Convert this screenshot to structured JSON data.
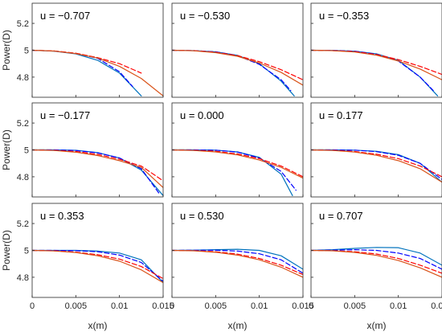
{
  "chart_data": [
    {
      "type": "line",
      "panel_label": "u = −0.707",
      "series": [
        {
          "color": "#0072BD",
          "dash": "solid",
          "x": [
            0,
            0.0025,
            0.005,
            0.0075,
            0.01,
            0.0125
          ],
          "y": [
            5.0,
            4.993,
            4.973,
            4.925,
            4.83,
            4.66
          ]
        },
        {
          "color": "#0000FF",
          "dash": "dashed",
          "x": [
            0,
            0.0025,
            0.005,
            0.0075,
            0.01,
            0.0115
          ],
          "y": [
            5.0,
            4.994,
            4.976,
            4.94,
            4.84,
            4.73
          ]
        },
        {
          "color": "#FF0000",
          "dash": "dashed",
          "x": [
            0,
            0.0025,
            0.005,
            0.0075,
            0.01,
            0.0125
          ],
          "y": [
            5.0,
            4.995,
            4.978,
            4.945,
            4.9,
            4.83
          ]
        },
        {
          "color": "#D95319",
          "dash": "solid",
          "x": [
            0,
            0.0025,
            0.005,
            0.0075,
            0.01,
            0.0125,
            0.015
          ],
          "y": [
            5.0,
            4.994,
            4.975,
            4.942,
            4.88,
            4.79,
            4.66
          ]
        }
      ]
    },
    {
      "type": "line",
      "panel_label": "u = −0.530",
      "series": [
        {
          "color": "#0072BD",
          "dash": "solid",
          "x": [
            0,
            0.0025,
            0.005,
            0.0075,
            0.01,
            0.0125,
            0.014
          ],
          "y": [
            5.0,
            4.997,
            4.988,
            4.962,
            4.9,
            4.77,
            4.66
          ]
        },
        {
          "color": "#0000FF",
          "dash": "dashed",
          "x": [
            0,
            0.0025,
            0.005,
            0.0075,
            0.01,
            0.0125,
            0.0136
          ],
          "y": [
            5.0,
            4.997,
            4.988,
            4.96,
            4.895,
            4.78,
            4.7
          ]
        },
        {
          "color": "#FF0000",
          "dash": "dashed",
          "x": [
            0,
            0.0025,
            0.005,
            0.0075,
            0.01,
            0.0125,
            0.015
          ],
          "y": [
            5.0,
            4.997,
            4.985,
            4.96,
            4.915,
            4.855,
            4.78
          ]
        },
        {
          "color": "#D95319",
          "dash": "solid",
          "x": [
            0,
            0.0025,
            0.005,
            0.0075,
            0.01,
            0.0125,
            0.015
          ],
          "y": [
            5.0,
            4.996,
            4.982,
            4.955,
            4.905,
            4.835,
            4.74
          ]
        }
      ]
    },
    {
      "type": "line",
      "panel_label": "u = −0.353",
      "series": [
        {
          "color": "#0072BD",
          "dash": "solid",
          "x": [
            0,
            0.0025,
            0.005,
            0.0075,
            0.01,
            0.0125,
            0.0145
          ],
          "y": [
            5.0,
            4.999,
            4.993,
            4.973,
            4.925,
            4.8,
            4.66
          ]
        },
        {
          "color": "#0000FF",
          "dash": "dashed",
          "x": [
            0,
            0.0025,
            0.005,
            0.0075,
            0.01,
            0.0125,
            0.014
          ],
          "y": [
            5.0,
            4.999,
            4.993,
            4.97,
            4.92,
            4.8,
            4.7
          ]
        },
        {
          "color": "#FF0000",
          "dash": "dashed",
          "x": [
            0,
            0.0025,
            0.005,
            0.0075,
            0.01,
            0.0125,
            0.015
          ],
          "y": [
            5.0,
            4.997,
            4.99,
            4.968,
            4.93,
            4.88,
            4.82
          ]
        },
        {
          "color": "#D95319",
          "dash": "solid",
          "x": [
            0,
            0.0025,
            0.005,
            0.0075,
            0.01,
            0.0125,
            0.015
          ],
          "y": [
            5.0,
            4.997,
            4.987,
            4.963,
            4.92,
            4.86,
            4.78
          ]
        }
      ]
    },
    {
      "type": "line",
      "panel_label": "u = −0.177",
      "series": [
        {
          "color": "#0072BD",
          "dash": "solid",
          "x": [
            0,
            0.0025,
            0.005,
            0.0075,
            0.01,
            0.0125,
            0.015
          ],
          "y": [
            5.0,
            5.0,
            4.997,
            4.98,
            4.94,
            4.85,
            4.66
          ]
        },
        {
          "color": "#0000FF",
          "dash": "dashed",
          "x": [
            0,
            0.0025,
            0.005,
            0.0075,
            0.01,
            0.0125,
            0.0145
          ],
          "y": [
            5.0,
            5.0,
            4.996,
            4.978,
            4.94,
            4.86,
            4.68
          ]
        },
        {
          "color": "#FF0000",
          "dash": "dashed",
          "x": [
            0,
            0.0025,
            0.005,
            0.0075,
            0.01,
            0.0125,
            0.015
          ],
          "y": [
            5.0,
            4.997,
            4.988,
            4.967,
            4.93,
            4.88,
            4.77
          ]
        },
        {
          "color": "#D95319",
          "dash": "solid",
          "x": [
            0,
            0.0025,
            0.005,
            0.0075,
            0.01,
            0.0125,
            0.015
          ],
          "y": [
            5.0,
            4.996,
            4.983,
            4.958,
            4.92,
            4.87,
            4.72
          ]
        }
      ]
    },
    {
      "type": "line",
      "panel_label": "u = 0.000",
      "series": [
        {
          "color": "#0072BD",
          "dash": "solid",
          "x": [
            0,
            0.0025,
            0.005,
            0.0075,
            0.01,
            0.0125,
            0.0138
          ],
          "y": [
            5.0,
            5.0,
            4.998,
            4.985,
            4.945,
            4.82,
            4.66
          ]
        },
        {
          "color": "#0000FF",
          "dash": "dashed",
          "x": [
            0,
            0.0025,
            0.005,
            0.0075,
            0.01,
            0.0125,
            0.0142
          ],
          "y": [
            5.0,
            5.0,
            4.998,
            4.984,
            4.94,
            4.84,
            4.7
          ]
        },
        {
          "color": "#FF0000",
          "dash": "dashed",
          "x": [
            0,
            0.0025,
            0.005,
            0.0075,
            0.01,
            0.0125,
            0.015
          ],
          "y": [
            5.0,
            4.997,
            4.99,
            4.97,
            4.935,
            4.88,
            4.8
          ]
        },
        {
          "color": "#D95319",
          "dash": "solid",
          "x": [
            0,
            0.0025,
            0.005,
            0.0075,
            0.01,
            0.0125,
            0.015
          ],
          "y": [
            5.0,
            4.996,
            4.985,
            4.963,
            4.925,
            4.87,
            4.79
          ]
        }
      ]
    },
    {
      "type": "line",
      "panel_label": "u = 0.177",
      "series": [
        {
          "color": "#0072BD",
          "dash": "solid",
          "x": [
            0,
            0.0025,
            0.005,
            0.0075,
            0.01,
            0.0125,
            0.015
          ],
          "y": [
            5.0,
            5.0,
            4.998,
            4.99,
            4.965,
            4.9,
            4.76
          ]
        },
        {
          "color": "#0000FF",
          "dash": "dashed",
          "x": [
            0,
            0.0025,
            0.005,
            0.0075,
            0.01,
            0.0125,
            0.015
          ],
          "y": [
            5.0,
            5.0,
            4.998,
            4.987,
            4.96,
            4.9,
            4.78
          ]
        },
        {
          "color": "#FF0000",
          "dash": "dashed",
          "x": [
            0,
            0.0025,
            0.005,
            0.0075,
            0.01,
            0.0125,
            0.015
          ],
          "y": [
            5.0,
            4.997,
            4.988,
            4.968,
            4.935,
            4.88,
            4.8
          ]
        },
        {
          "color": "#D95319",
          "dash": "solid",
          "x": [
            0,
            0.0025,
            0.005,
            0.0075,
            0.01,
            0.0125,
            0.015
          ],
          "y": [
            5.0,
            4.996,
            4.984,
            4.96,
            4.92,
            4.86,
            4.76
          ]
        }
      ]
    },
    {
      "type": "line",
      "panel_label": "u = 0.353",
      "series": [
        {
          "color": "#0072BD",
          "dash": "solid",
          "x": [
            0,
            0.0025,
            0.005,
            0.0075,
            0.01,
            0.0125,
            0.015
          ],
          "y": [
            5.0,
            5.0,
            5.0,
            4.995,
            4.98,
            4.93,
            4.76
          ]
        },
        {
          "color": "#0000FF",
          "dash": "dashed",
          "x": [
            0,
            0.0025,
            0.005,
            0.0075,
            0.01,
            0.0125,
            0.015
          ],
          "y": [
            5.0,
            5.0,
            4.998,
            4.99,
            4.965,
            4.91,
            4.77
          ]
        },
        {
          "color": "#FF0000",
          "dash": "dashed",
          "x": [
            0,
            0.0025,
            0.005,
            0.0075,
            0.01,
            0.0125,
            0.015
          ],
          "y": [
            5.0,
            4.997,
            4.987,
            4.968,
            4.935,
            4.88,
            4.79
          ]
        },
        {
          "color": "#D95319",
          "dash": "solid",
          "x": [
            0,
            0.0025,
            0.005,
            0.0075,
            0.01,
            0.0125,
            0.015
          ],
          "y": [
            5.0,
            4.996,
            4.984,
            4.96,
            4.92,
            4.855,
            4.76
          ]
        }
      ]
    },
    {
      "type": "line",
      "panel_label": "u = 0.530",
      "series": [
        {
          "color": "#0072BD",
          "dash": "solid",
          "x": [
            0,
            0.0025,
            0.005,
            0.0075,
            0.01,
            0.0125,
            0.015
          ],
          "y": [
            5.0,
            5.002,
            5.005,
            5.008,
            5.0,
            4.96,
            4.86
          ]
        },
        {
          "color": "#0000FF",
          "dash": "dashed",
          "x": [
            0,
            0.0025,
            0.005,
            0.0075,
            0.01,
            0.0125,
            0.015
          ],
          "y": [
            5.0,
            5.001,
            5.001,
            4.995,
            4.975,
            4.93,
            4.83
          ]
        },
        {
          "color": "#FF0000",
          "dash": "dashed",
          "x": [
            0,
            0.0025,
            0.005,
            0.0075,
            0.01,
            0.0125,
            0.015
          ],
          "y": [
            5.0,
            4.998,
            4.99,
            4.972,
            4.94,
            4.89,
            4.82
          ]
        },
        {
          "color": "#D95319",
          "dash": "solid",
          "x": [
            0,
            0.0025,
            0.005,
            0.0075,
            0.01,
            0.0125,
            0.015
          ],
          "y": [
            5.0,
            4.997,
            4.986,
            4.965,
            4.93,
            4.875,
            4.8
          ]
        }
      ]
    },
    {
      "type": "line",
      "panel_label": "u = 0.707",
      "series": [
        {
          "color": "#0072BD",
          "dash": "solid",
          "x": [
            0,
            0.0025,
            0.005,
            0.0075,
            0.01,
            0.0125,
            0.015
          ],
          "y": [
            5.0,
            5.005,
            5.015,
            5.022,
            5.02,
            4.98,
            4.89
          ]
        },
        {
          "color": "#0000FF",
          "dash": "dashed",
          "x": [
            0,
            0.0025,
            0.005,
            0.0075,
            0.01,
            0.0125,
            0.015
          ],
          "y": [
            5.0,
            5.002,
            5.005,
            5.0,
            4.98,
            4.94,
            4.86
          ]
        },
        {
          "color": "#FF0000",
          "dash": "dashed",
          "x": [
            0,
            0.0025,
            0.005,
            0.0075,
            0.01,
            0.0125,
            0.015
          ],
          "y": [
            5.0,
            4.998,
            4.99,
            4.973,
            4.94,
            4.89,
            4.83
          ]
        },
        {
          "color": "#D95319",
          "dash": "solid",
          "x": [
            0,
            0.0025,
            0.005,
            0.0075,
            0.01,
            0.0125,
            0.015
          ],
          "y": [
            5.0,
            4.997,
            4.985,
            4.963,
            4.925,
            4.87,
            4.8
          ]
        }
      ]
    }
  ],
  "axes": {
    "xlabel": "x(m)",
    "ylabel": "Power(D)",
    "xlim": [
      0,
      0.015
    ],
    "ylim": [
      4.65,
      5.35
    ],
    "xticks": [
      0,
      0.005,
      0.01,
      0.015
    ],
    "xtick_labels": [
      "0",
      "0.005",
      "0.01",
      "0.015"
    ],
    "yticks": [
      4.8,
      5,
      5.2
    ],
    "ytick_labels": [
      "4.8",
      "5",
      "5.2"
    ],
    "grid": false
  },
  "colors": {
    "axis": "#262626",
    "cyan_line": "#0072BD",
    "blue_dashed": "#0000FF",
    "red_dashed": "#FF0000",
    "orange_line": "#D95319"
  }
}
